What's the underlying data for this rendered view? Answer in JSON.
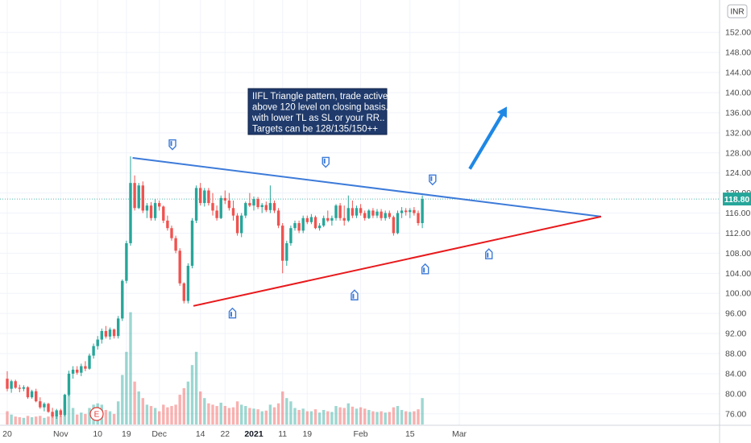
{
  "currency": "INR",
  "last_price": "118.80",
  "annotation": [
    "IIFL Triangle pattern, trade active",
    "above 120 level on closing basis...",
    "with lower TL as SL or your RR..",
    "Targets can be 128/135/150++"
  ],
  "earnings_marker": "E",
  "colors": {
    "up": "#26a69a",
    "down": "#ef5350",
    "upper_trendline": "#3d7bd9",
    "lower_trendline": "#e8191c",
    "arrow": "#1e88e5",
    "note_bg": "#1f3a6b",
    "pivot": "#2962ff"
  },
  "chart_data": {
    "type": "candlestick",
    "y_axis": {
      "ticks": [
        "76.00",
        "80.00",
        "84.00",
        "88.00",
        "92.00",
        "96.00",
        "100.00",
        "104.00",
        "108.00",
        "112.00",
        "116.00",
        "120.00",
        "124.00",
        "128.00",
        "132.00",
        "136.00",
        "140.00",
        "144.00",
        "148.00",
        "152.00"
      ],
      "range": [
        74,
        156
      ],
      "position": "right"
    },
    "x_axis": {
      "labels": [
        {
          "text": "20",
          "bar": 0
        },
        {
          "text": "Nov",
          "bar": 13
        },
        {
          "text": "10",
          "bar": 22
        },
        {
          "text": "19",
          "bar": 29
        },
        {
          "text": "Dec",
          "bar": 37
        },
        {
          "text": "14",
          "bar": 47
        },
        {
          "text": "22",
          "bar": 53
        },
        {
          "text": "2021",
          "bar": 60,
          "bold": true
        },
        {
          "text": "11",
          "bar": 67
        },
        {
          "text": "19",
          "bar": 73
        },
        {
          "text": "Feb",
          "bar": 86
        },
        {
          "text": "15",
          "bar": 98
        },
        {
          "text": "Mar",
          "bar": 110
        }
      ]
    },
    "candles": [
      [
        83.0,
        84.5,
        80.5,
        81.0,
        2.0
      ],
      [
        81.0,
        82.8,
        80.2,
        82.5,
        1.5
      ],
      [
        82.5,
        82.8,
        81.0,
        81.2,
        1.2
      ],
      [
        81.2,
        81.8,
        80.3,
        81.0,
        1.1
      ],
      [
        81.0,
        81.7,
        80.5,
        81.3,
        1.0
      ],
      [
        81.3,
        81.5,
        79.0,
        79.3,
        1.3
      ],
      [
        79.3,
        80.8,
        79.0,
        80.5,
        1.1
      ],
      [
        80.5,
        81.0,
        78.3,
        78.5,
        1.2
      ],
      [
        78.5,
        79.3,
        77.0,
        77.3,
        1.3
      ],
      [
        77.3,
        78.3,
        76.5,
        78.0,
        1.0
      ],
      [
        78.0,
        78.2,
        76.2,
        76.4,
        1.2
      ],
      [
        76.4,
        77.2,
        75.2,
        75.5,
        1.5
      ],
      [
        75.5,
        77.0,
        75.0,
        76.7,
        1.3
      ],
      [
        76.7,
        77.0,
        75.4,
        75.8,
        1.4
      ],
      [
        75.8,
        80.0,
        75.5,
        79.8,
        3.5
      ],
      [
        79.8,
        84.6,
        79.5,
        84.0,
        4.5
      ],
      [
        84.0,
        85.5,
        83.0,
        84.8,
        2.5
      ],
      [
        84.8,
        85.5,
        83.8,
        84.2,
        1.5
      ],
      [
        84.2,
        86.0,
        83.5,
        85.5,
        1.8
      ],
      [
        85.5,
        86.5,
        84.5,
        85.0,
        1.6
      ],
      [
        85.0,
        88.0,
        84.8,
        87.6,
        2.5
      ],
      [
        87.6,
        90.0,
        87.0,
        89.5,
        3.0
      ],
      [
        89.5,
        91.5,
        88.8,
        90.8,
        3.2
      ],
      [
        90.8,
        93.0,
        90.0,
        92.5,
        3.0
      ],
      [
        92.5,
        93.5,
        91.0,
        91.4,
        2.2
      ],
      [
        91.4,
        93.2,
        90.8,
        92.8,
        2.0
      ],
      [
        92.8,
        93.0,
        91.0,
        91.5,
        1.6
      ],
      [
        91.5,
        95.5,
        91.0,
        95.0,
        3.5
      ],
      [
        95.0,
        102.8,
        94.5,
        102.5,
        7.5
      ],
      [
        102.5,
        110.5,
        102.0,
        110.0,
        11.0
      ],
      [
        110.0,
        127.3,
        109.5,
        122.0,
        17.0
      ],
      [
        122.0,
        123.5,
        116.5,
        117.0,
        6.5
      ],
      [
        117.0,
        122.0,
        116.8,
        121.5,
        5.0
      ],
      [
        121.5,
        122.3,
        116.0,
        116.5,
        4.0
      ],
      [
        116.5,
        118.0,
        115.0,
        117.5,
        3.0
      ],
      [
        117.5,
        118.2,
        114.5,
        115.0,
        2.8
      ],
      [
        115.0,
        118.8,
        114.5,
        118.0,
        2.5
      ],
      [
        118.0,
        118.5,
        116.5,
        117.3,
        2.0
      ],
      [
        117.3,
        117.5,
        114.0,
        114.5,
        3.0
      ],
      [
        114.5,
        115.5,
        112.5,
        113.0,
        2.6
      ],
      [
        113.0,
        113.5,
        110.5,
        111.0,
        2.8
      ],
      [
        111.0,
        111.5,
        108.0,
        108.5,
        3.0
      ],
      [
        108.5,
        109.0,
        101.5,
        102.0,
        4.5
      ],
      [
        102.0,
        102.2,
        98.0,
        98.5,
        5.5
      ],
      [
        98.5,
        106.0,
        98.0,
        105.5,
        6.5
      ],
      [
        105.5,
        115.0,
        105.0,
        114.5,
        9.0
      ],
      [
        114.5,
        121.5,
        114.0,
        121.0,
        11.0
      ],
      [
        121.0,
        122.0,
        117.5,
        118.0,
        5.0
      ],
      [
        118.0,
        121.0,
        117.3,
        120.5,
        4.0
      ],
      [
        120.5,
        121.0,
        117.5,
        118.0,
        3.2
      ],
      [
        118.0,
        120.0,
        115.5,
        116.5,
        3.0
      ],
      [
        116.5,
        117.5,
        114.5,
        115.0,
        2.8
      ],
      [
        115.0,
        119.5,
        114.8,
        119.0,
        3.3
      ],
      [
        119.0,
        120.5,
        117.8,
        118.5,
        2.8
      ],
      [
        118.5,
        120.0,
        116.5,
        117.0,
        2.5
      ],
      [
        117.0,
        118.5,
        114.5,
        115.5,
        2.6
      ],
      [
        115.5,
        116.0,
        111.5,
        112.0,
        3.5
      ],
      [
        112.0,
        116.0,
        111.2,
        115.5,
        3.0
      ],
      [
        115.5,
        118.3,
        115.0,
        118.0,
        2.8
      ],
      [
        118.0,
        120.0,
        117.2,
        117.5,
        2.5
      ],
      [
        117.5,
        119.3,
        116.5,
        118.8,
        2.4
      ],
      [
        118.8,
        119.2,
        116.8,
        117.2,
        2.3
      ],
      [
        117.2,
        118.0,
        116.0,
        117.6,
        2.0
      ],
      [
        117.6,
        118.3,
        116.2,
        116.6,
        2.1
      ],
      [
        116.6,
        121.5,
        116.0,
        118.0,
        3.0
      ],
      [
        118.0,
        118.5,
        116.0,
        116.5,
        2.6
      ],
      [
        116.5,
        117.0,
        113.0,
        113.5,
        3.2
      ],
      [
        113.5,
        114.0,
        104.0,
        106.5,
        5.0
      ],
      [
        106.5,
        110.5,
        105.5,
        110.0,
        4.0
      ],
      [
        110.0,
        113.5,
        109.5,
        113.0,
        3.5
      ],
      [
        113.0,
        114.5,
        112.5,
        114.0,
        2.5
      ],
      [
        114.0,
        114.5,
        112.0,
        112.5,
        2.2
      ],
      [
        112.5,
        115.5,
        112.0,
        115.0,
        2.4
      ],
      [
        115.0,
        115.5,
        113.8,
        114.2,
        2.0
      ],
      [
        114.2,
        115.8,
        113.8,
        115.2,
        2.0
      ],
      [
        115.2,
        115.5,
        112.8,
        113.0,
        2.3
      ],
      [
        113.0,
        114.0,
        112.5,
        113.5,
        1.8
      ],
      [
        113.5,
        115.5,
        113.2,
        115.0,
        2.2
      ],
      [
        115.0,
        116.5,
        114.2,
        114.5,
        2.0
      ],
      [
        114.5,
        115.5,
        113.5,
        115.0,
        1.9
      ],
      [
        115.0,
        117.8,
        114.5,
        117.5,
        2.8
      ],
      [
        117.5,
        118.0,
        114.5,
        115.0,
        2.6
      ],
      [
        115.0,
        117.5,
        113.5,
        114.5,
        2.5
      ],
      [
        114.5,
        119.5,
        114.2,
        117.0,
        3.2
      ],
      [
        117.0,
        118.5,
        115.0,
        115.5,
        2.7
      ],
      [
        115.5,
        117.5,
        115.0,
        117.0,
        2.4
      ],
      [
        117.0,
        117.8,
        115.5,
        116.0,
        2.6
      ],
      [
        116.0,
        116.5,
        114.5,
        115.0,
        2.4
      ],
      [
        115.0,
        116.8,
        114.8,
        116.5,
        2.2
      ],
      [
        116.5,
        117.0,
        115.0,
        115.5,
        2.0
      ],
      [
        115.5,
        116.8,
        115.0,
        116.3,
        1.9
      ],
      [
        116.3,
        116.8,
        114.5,
        115.0,
        2.0
      ],
      [
        115.0,
        116.5,
        114.5,
        116.0,
        1.8
      ],
      [
        116.0,
        116.5,
        114.8,
        115.2,
        1.9
      ],
      [
        115.2,
        115.5,
        111.5,
        112.0,
        2.6
      ],
      [
        112.0,
        116.5,
        111.8,
        116.0,
        2.8
      ],
      [
        116.0,
        117.2,
        115.0,
        116.5,
        2.2
      ],
      [
        116.5,
        117.0,
        115.5,
        116.2,
        2.0
      ],
      [
        116.2,
        117.0,
        115.0,
        116.6,
        1.9
      ],
      [
        116.6,
        117.2,
        115.5,
        116.0,
        2.0
      ],
      [
        116.0,
        116.5,
        113.5,
        114.0,
        2.3
      ],
      [
        114.0,
        119.5,
        113.0,
        118.8,
        4.0
      ]
    ]
  }
}
